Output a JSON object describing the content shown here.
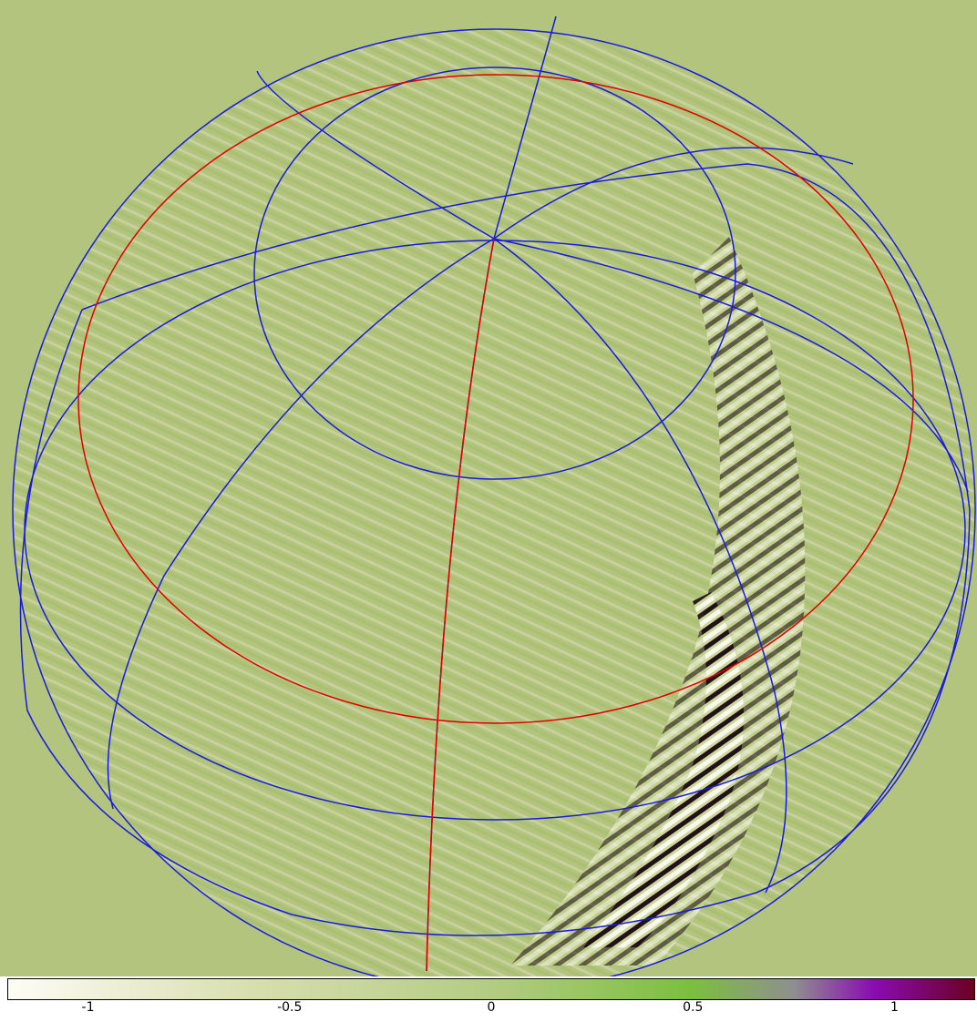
{
  "colorbar": {
    "ticks": [
      {
        "value": -1,
        "label": "-1"
      },
      {
        "value": -0.5,
        "label": "-0.5"
      },
      {
        "value": 0,
        "label": "0"
      },
      {
        "value": 0.5,
        "label": "0.5"
      },
      {
        "value": 1,
        "label": "1"
      }
    ],
    "range": [
      -1.2,
      1.2
    ],
    "stops": [
      {
        "value": -1.2,
        "color": "#fdfdf5"
      },
      {
        "value": -0.6,
        "color": "#d8dfae"
      },
      {
        "value": 0,
        "color": "#b3cc82"
      },
      {
        "value": 0.5,
        "color": "#7bbf3e"
      },
      {
        "value": 0.75,
        "color": "#8f8f8f"
      },
      {
        "value": 0.95,
        "color": "#8a0cb0"
      },
      {
        "value": 1.2,
        "color": "#6b0022"
      }
    ]
  },
  "colors": {
    "background": "#b3c47f",
    "grid_lines": "#1a1adc",
    "horizon_line": "#e00000"
  }
}
